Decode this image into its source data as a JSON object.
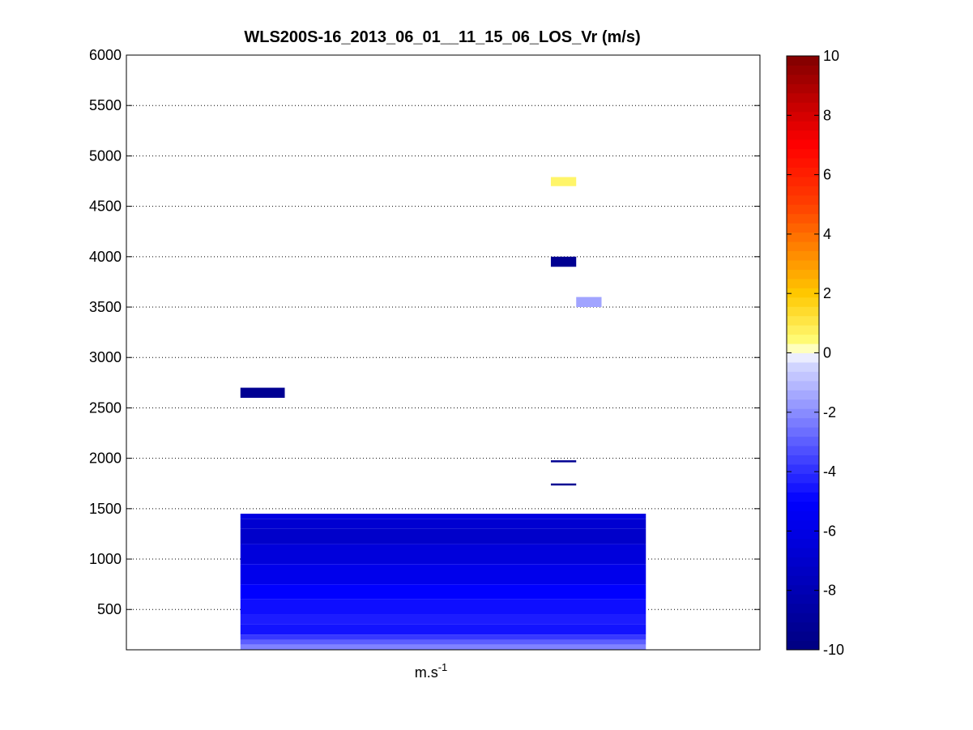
{
  "chart_data": {
    "type": "heatmap",
    "title": "WLS200S-16_2013_06_01__11_15_06_LOS_Vr (m/s)",
    "xlabel_base": "m.s",
    "xlabel_exp": "-1",
    "ylabel": "",
    "ylim": [
      100,
      6000
    ],
    "yticks": [
      500,
      1000,
      1500,
      2000,
      2500,
      3000,
      3500,
      4000,
      4500,
      5000,
      5500,
      6000
    ],
    "grid": "horizontal-dotted",
    "colorbar": {
      "min": -10,
      "max": 10,
      "ticks": [
        -10,
        -8,
        -6,
        -4,
        -2,
        0,
        2,
        4,
        6,
        8,
        10
      ],
      "stops": [
        {
          "v": -10,
          "color": "#000080"
        },
        {
          "v": -5,
          "color": "#0000ff"
        },
        {
          "v": -0.3,
          "color": "#d8dcff"
        },
        {
          "v": 0,
          "color": "#ffffff"
        },
        {
          "v": 0.3,
          "color": "#ffff80"
        },
        {
          "v": 2,
          "color": "#ffc800"
        },
        {
          "v": 5,
          "color": "#ff4000"
        },
        {
          "v": 7,
          "color": "#ff0000"
        },
        {
          "v": 10,
          "color": "#800000"
        }
      ]
    },
    "cells": [
      {
        "x0": 0.18,
        "x1": 0.25,
        "y0": 2600,
        "y1": 2700,
        "value": -9.3
      },
      {
        "x0": 0.67,
        "x1": 0.71,
        "y0": 4700,
        "y1": 4790,
        "value": 0.6
      },
      {
        "x0": 0.67,
        "x1": 0.71,
        "y0": 3900,
        "y1": 4000,
        "value": -9.3
      },
      {
        "x0": 0.71,
        "x1": 0.75,
        "y0": 3500,
        "y1": 3600,
        "value": -1.5
      },
      {
        "x0": 0.67,
        "x1": 0.71,
        "y0": 1960,
        "y1": 1980,
        "value": -9.3
      },
      {
        "x0": 0.67,
        "x1": 0.71,
        "y0": 1730,
        "y1": 1750,
        "value": -9.3
      },
      {
        "x0": 0.18,
        "x1": 0.82,
        "y0": 1400,
        "y1": 1450,
        "value": -6.2
      },
      {
        "x0": 0.18,
        "x1": 0.82,
        "y0": 1300,
        "y1": 1400,
        "value": -6.8
      },
      {
        "x0": 0.18,
        "x1": 0.82,
        "y0": 1150,
        "y1": 1300,
        "value": -7.1
      },
      {
        "x0": 0.18,
        "x1": 0.82,
        "y0": 950,
        "y1": 1150,
        "value": -6.4
      },
      {
        "x0": 0.18,
        "x1": 0.82,
        "y0": 750,
        "y1": 950,
        "value": -5.8
      },
      {
        "x0": 0.18,
        "x1": 0.82,
        "y0": 600,
        "y1": 750,
        "value": -5.0
      },
      {
        "x0": 0.18,
        "x1": 0.82,
        "y0": 450,
        "y1": 600,
        "value": -4.7
      },
      {
        "x0": 0.18,
        "x1": 0.82,
        "y0": 350,
        "y1": 450,
        "value": -4.4
      },
      {
        "x0": 0.18,
        "x1": 0.82,
        "y0": 250,
        "y1": 350,
        "value": -4.6
      },
      {
        "x0": 0.18,
        "x1": 0.82,
        "y0": 200,
        "y1": 250,
        "value": -3.8
      },
      {
        "x0": 0.18,
        "x1": 0.82,
        "y0": 150,
        "y1": 200,
        "value": -3.0
      },
      {
        "x0": 0.18,
        "x1": 0.82,
        "y0": 100,
        "y1": 150,
        "value": -2.2
      }
    ]
  }
}
